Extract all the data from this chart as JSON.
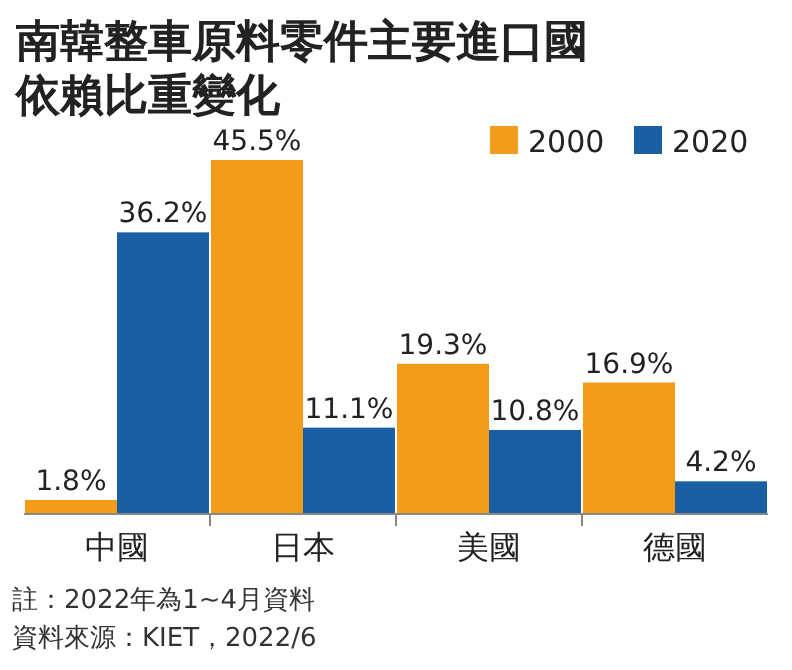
{
  "chart_data": {
    "type": "bar",
    "title": "南韓整車原料零件主要進口國依賴比重變化",
    "categories": [
      "中國",
      "日本",
      "美國",
      "德國"
    ],
    "series": [
      {
        "name": "2000",
        "color": "#f39c1a",
        "values": [
          1.8,
          45.5,
          19.3,
          16.9
        ],
        "value_labels": [
          "1.8%",
          "45.5%",
          "19.3%",
          "16.9%"
        ]
      },
      {
        "name": "2020",
        "color": "#1a5fa3",
        "values": [
          36.2,
          11.1,
          10.8,
          4.2
        ],
        "value_labels": [
          "36.2%",
          "11.1%",
          "10.8%",
          "4.2%"
        ]
      }
    ],
    "legend": "top right",
    "annotations": [
      "註：2022年為1~4月資料",
      "資料來源：KIET，2022/6"
    ]
  }
}
